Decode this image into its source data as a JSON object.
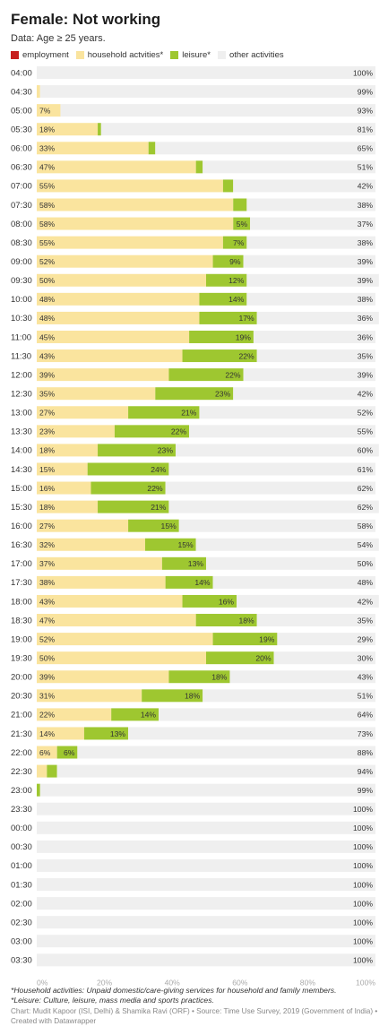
{
  "header": {
    "title": "Female: Not working",
    "subtitle": "Data: Age ≥ 25 years."
  },
  "legend": [
    {
      "label": "employment",
      "color": "#c71e1d"
    },
    {
      "label": "household actvities*",
      "color": "#fae49e"
    },
    {
      "label": "leisure*",
      "color": "#9ec730"
    },
    {
      "label": "other activities",
      "color": "#efefef"
    }
  ],
  "notes": {
    "household": "*Household activities: Unpaid domestic/care-giving services for household and family members.",
    "leisure": "*Leisure: Culture, leisure, mass media and sports practices."
  },
  "credit": "Chart: Mudit Kapoor (ISI, Delhi) & Shamika Ravi (ORF) • Source: Time Use Survey, 2019 (Government of India) • Created with Datawrapper",
  "chart_data": {
    "type": "bar",
    "orientation": "horizontal",
    "stacked": true,
    "xlim": [
      0,
      100
    ],
    "x_ticks": [
      "0%",
      "20%",
      "40%",
      "60%",
      "80%",
      "100%"
    ],
    "categories": [
      "04:00",
      "04:30",
      "05:00",
      "05:30",
      "06:00",
      "06:30",
      "07:00",
      "07:30",
      "08:00",
      "08:30",
      "09:00",
      "09:30",
      "10:00",
      "10:30",
      "11:00",
      "11:30",
      "12:00",
      "12:30",
      "13:00",
      "13:30",
      "14:00",
      "14:30",
      "15:00",
      "15:30",
      "16:00",
      "16:30",
      "17:00",
      "17:30",
      "18:00",
      "18:30",
      "19:00",
      "19:30",
      "20:00",
      "20:30",
      "21:00",
      "21:30",
      "22:00",
      "22:30",
      "23:00",
      "23:30",
      "00:00",
      "00:30",
      "01:00",
      "01:30",
      "02:00",
      "02:30",
      "03:00",
      "03:30"
    ],
    "series": [
      {
        "name": "employment",
        "color": "#c71e1d",
        "values": [
          0,
          0,
          0,
          0,
          0,
          0,
          0,
          0,
          0,
          0,
          0,
          0,
          0,
          0,
          0,
          0,
          0,
          0,
          0,
          0,
          0,
          0,
          0,
          0,
          0,
          0,
          0,
          0,
          0,
          0,
          0,
          0,
          0,
          0,
          0,
          0,
          0,
          0,
          0,
          0,
          0,
          0,
          0,
          0,
          0,
          0,
          0,
          0
        ]
      },
      {
        "name": "household actvities*",
        "color": "#fae49e",
        "values": [
          0,
          1,
          7,
          18,
          33,
          47,
          55,
          58,
          58,
          55,
          52,
          50,
          48,
          48,
          45,
          43,
          39,
          35,
          27,
          23,
          18,
          15,
          16,
          18,
          27,
          32,
          37,
          38,
          43,
          47,
          52,
          50,
          39,
          31,
          22,
          14,
          6,
          3,
          0,
          0,
          0,
          0,
          0,
          0,
          0,
          0,
          0,
          0
        ]
      },
      {
        "name": "leisure*",
        "color": "#9ec730",
        "values": [
          0,
          0,
          0,
          1,
          2,
          2,
          3,
          4,
          5,
          7,
          9,
          12,
          14,
          17,
          19,
          22,
          22,
          23,
          21,
          22,
          23,
          24,
          22,
          21,
          15,
          15,
          13,
          14,
          16,
          18,
          19,
          20,
          18,
          18,
          14,
          13,
          6,
          3,
          1,
          0,
          0,
          0,
          0,
          0,
          0,
          0,
          0,
          0
        ]
      },
      {
        "name": "other activities",
        "color": "#efefef",
        "values": [
          100,
          99,
          93,
          81,
          65,
          51,
          42,
          38,
          37,
          38,
          39,
          39,
          38,
          36,
          36,
          35,
          39,
          42,
          52,
          55,
          60,
          61,
          62,
          62,
          58,
          54,
          50,
          48,
          42,
          35,
          29,
          30,
          43,
          51,
          64,
          73,
          88,
          94,
          99,
          100,
          100,
          100,
          100,
          100,
          100,
          100,
          100,
          100
        ]
      }
    ],
    "labels_household": [
      "",
      "",
      "7%",
      "18%",
      "33%",
      "47%",
      "55%",
      "58%",
      "58%",
      "55%",
      "52%",
      "50%",
      "48%",
      "48%",
      "45%",
      "43%",
      "39%",
      "35%",
      "27%",
      "23%",
      "18%",
      "15%",
      "16%",
      "18%",
      "27%",
      "32%",
      "37%",
      "38%",
      "43%",
      "47%",
      "52%",
      "50%",
      "39%",
      "31%",
      "22%",
      "14%",
      "6%",
      "",
      "",
      "",
      "",
      "",
      "",
      "",
      "",
      "",
      "",
      ""
    ],
    "labels_leisure": [
      "",
      "",
      "",
      "",
      "",
      "",
      "",
      "",
      "5%",
      "7%",
      "9%",
      "12%",
      "14%",
      "17%",
      "19%",
      "22%",
      "22%",
      "23%",
      "21%",
      "22%",
      "23%",
      "24%",
      "22%",
      "21%",
      "15%",
      "15%",
      "13%",
      "14%",
      "16%",
      "18%",
      "19%",
      "20%",
      "18%",
      "18%",
      "14%",
      "13%",
      "6%",
      "",
      "",
      "",
      "",
      "",
      "",
      "",
      "",
      "",
      "",
      ""
    ],
    "labels_other": [
      "100%",
      "99%",
      "93%",
      "81%",
      "65%",
      "51%",
      "42%",
      "38%",
      "37%",
      "38%",
      "39%",
      "39%",
      "38%",
      "36%",
      "36%",
      "35%",
      "39%",
      "42%",
      "52%",
      "55%",
      "60%",
      "61%",
      "62%",
      "62%",
      "58%",
      "54%",
      "50%",
      "48%",
      "42%",
      "35%",
      "29%",
      "30%",
      "43%",
      "51%",
      "64%",
      "73%",
      "88%",
      "94%",
      "99%",
      "100%",
      "100%",
      "100%",
      "100%",
      "100%",
      "100%",
      "100%",
      "100%",
      "100%"
    ]
  }
}
